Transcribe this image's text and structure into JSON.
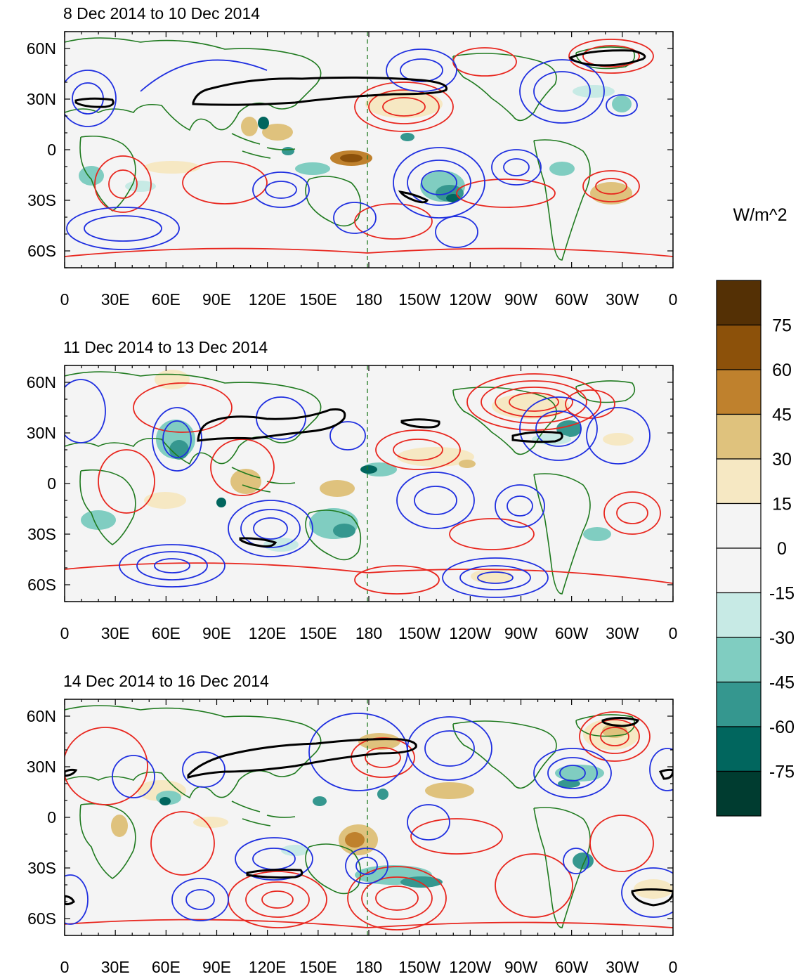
{
  "figure": {
    "units_label": "W/m^2",
    "colors": {
      "land_outline": "#1f7a1f",
      "positive_contour": "#e8261e",
      "negative_contour": "#1f2fe0",
      "jet_contour": "#000000",
      "dateline": "#1f7a1f",
      "background": "#f4f4f4"
    }
  },
  "panels": [
    {
      "title": "8 Dec 2014 to 10 Dec 2014"
    },
    {
      "title": "11 Dec 2014 to 13 Dec 2014"
    },
    {
      "title": "14 Dec 2014 to 16 Dec 2014"
    }
  ],
  "axes": {
    "y_labels": [
      "60N",
      "30N",
      "0",
      "30S",
      "60S"
    ],
    "x_labels": [
      "0",
      "30E",
      "60E",
      "90E",
      "120E",
      "150E",
      "180",
      "150W",
      "120W",
      "90W",
      "60W",
      "30W",
      "0"
    ]
  },
  "colorbar": {
    "boundaries": [
      90,
      75,
      60,
      45,
      30,
      15,
      0,
      -15,
      -30,
      -45,
      -60,
      -75,
      -90
    ],
    "labels": [
      "75",
      "60",
      "45",
      "30",
      "15",
      "0",
      "-15",
      "-30",
      "-45",
      "-60",
      "-75"
    ],
    "colors": [
      "#543005",
      "#8c510a",
      "#bf812d",
      "#dfc27d",
      "#f6e8c3",
      "#f4f4f4",
      "#f4f4f4",
      "#c7eae5",
      "#80cdc1",
      "#35978f",
      "#01665e",
      "#003c30"
    ]
  }
}
